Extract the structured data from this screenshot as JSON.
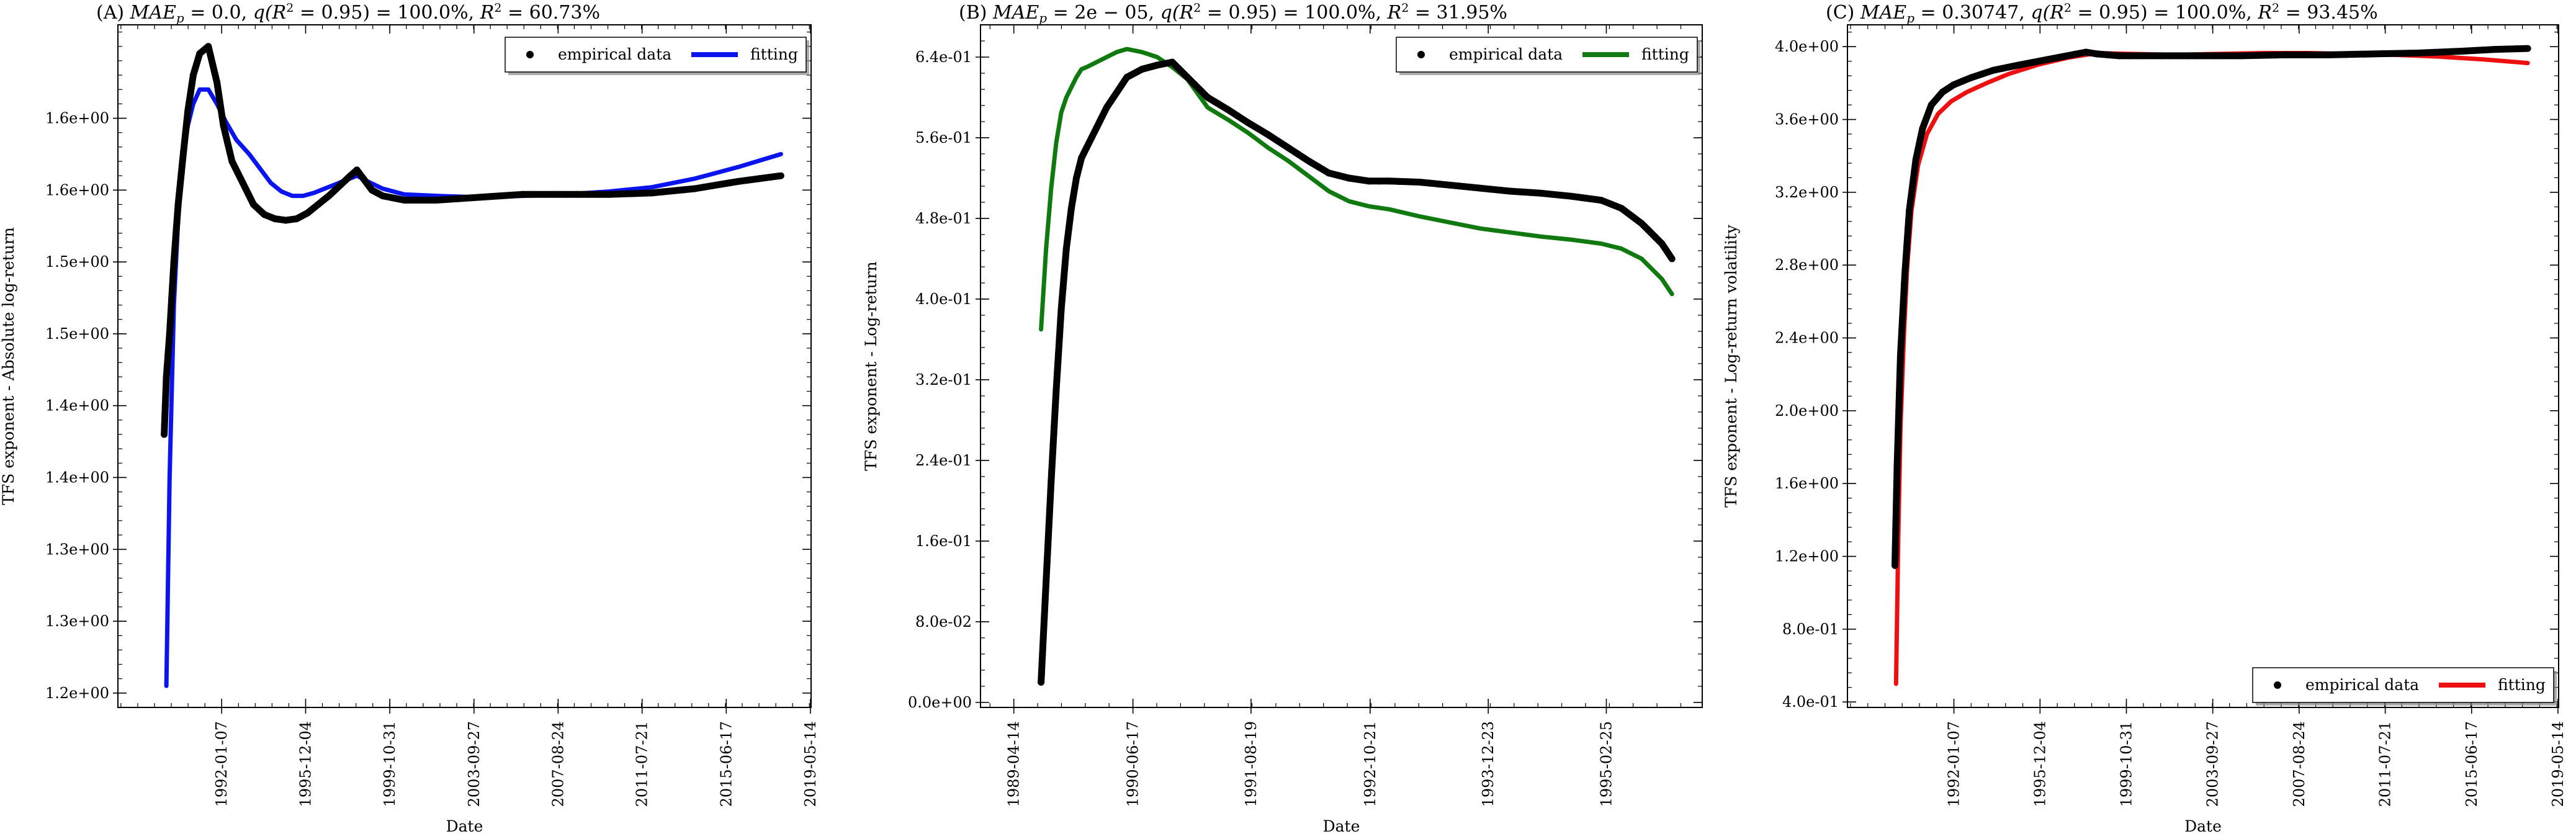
{
  "figure": {
    "panels": [
      "A",
      "B",
      "C"
    ]
  },
  "chart_data": [
    {
      "id": "A",
      "type": "line",
      "title": "(A) MAE_p = 0.0, q(R² = 0.95) = 100.0%, R² = 60.73%",
      "title_parts": {
        "prefix": "(A) ",
        "mae_sym": "MAE",
        "mae_sub": "p",
        "mae_val": " = 0.0, ",
        "q_text": "q(",
        "r2_sym": "R",
        "r2_sup": "2",
        "q_rest": " = 0.95) = 100.0%, ",
        "r2_val": " = 60.73%"
      },
      "xlabel": "Date",
      "ylabel": "TFS exponent - Absolute log-return",
      "x_range": [
        1987.2,
        2019.4
      ],
      "y_range": [
        1.19,
        1.665
      ],
      "x_ticks": [
        {
          "label": "1992-01-07",
          "value": 1992.02
        },
        {
          "label": "1995-12-04",
          "value": 1995.92
        },
        {
          "label": "1999-10-31",
          "value": 1999.83
        },
        {
          "label": "2003-09-27",
          "value": 2003.74
        },
        {
          "label": "2007-08-24",
          "value": 2007.65
        },
        {
          "label": "2011-07-21",
          "value": 2011.55
        },
        {
          "label": "2015-06-17",
          "value": 2015.46
        },
        {
          "label": "2019-05-14",
          "value": 2019.37
        }
      ],
      "y_ticks": [
        {
          "label": "1.2e+00",
          "value": 1.2
        },
        {
          "label": "1.3e+00",
          "value": 1.25
        },
        {
          "label": "1.3e+00",
          "value": 1.3
        },
        {
          "label": "1.4e+00",
          "value": 1.35
        },
        {
          "label": "1.4e+00",
          "value": 1.4
        },
        {
          "label": "1.5e+00",
          "value": 1.45
        },
        {
          "label": "1.5e+00",
          "value": 1.5
        },
        {
          "label": "1.6e+00",
          "value": 1.55
        },
        {
          "label": "1.6e+00",
          "value": 1.6
        }
      ],
      "legend": {
        "position": "top-right",
        "empirical_label": "empirical data",
        "fitting_label": "fitting"
      },
      "fit_color": "#0a14ee",
      "empirical_color": "#000000",
      "series": [
        {
          "name": "empirical data",
          "x": [
            1989.35,
            1989.45,
            1989.6,
            1989.8,
            1990.0,
            1990.2,
            1990.45,
            1990.7,
            1991.0,
            1991.4,
            1991.8,
            1992.1,
            1992.5,
            1993.0,
            1993.5,
            1994.0,
            1994.5,
            1995.0,
            1995.5,
            1996.0,
            1996.5,
            1997.0,
            1997.5,
            1998.0,
            1998.3,
            1998.6,
            1999.0,
            1999.5,
            2000.5,
            2002,
            2004,
            2006,
            2008,
            2010,
            2012,
            2014,
            2016,
            2018
          ],
          "y": [
            1.38,
            1.42,
            1.45,
            1.5,
            1.54,
            1.57,
            1.605,
            1.63,
            1.645,
            1.65,
            1.625,
            1.595,
            1.57,
            1.555,
            1.54,
            1.533,
            1.53,
            1.529,
            1.53,
            1.534,
            1.54,
            1.546,
            1.553,
            1.56,
            1.564,
            1.558,
            1.55,
            1.546,
            1.543,
            1.543,
            1.545,
            1.547,
            1.547,
            1.547,
            1.548,
            1.551,
            1.556,
            1.56
          ]
        },
        {
          "name": "fitting",
          "x": [
            1989.45,
            1989.6,
            1989.8,
            1990.0,
            1990.2,
            1990.45,
            1990.7,
            1991.0,
            1991.4,
            1991.8,
            1992.2,
            1992.7,
            1993.3,
            1993.8,
            1994.3,
            1994.8,
            1995.3,
            1995.8,
            1996.3,
            1996.8,
            1997.3,
            1997.8,
            1998.3,
            1998.8,
            1999.5,
            2000.5,
            2002,
            2004,
            2006,
            2008,
            2010,
            2012,
            2014,
            2016,
            2018
          ],
          "y": [
            1.205,
            1.35,
            1.47,
            1.53,
            1.57,
            1.595,
            1.61,
            1.62,
            1.62,
            1.61,
            1.598,
            1.585,
            1.575,
            1.565,
            1.555,
            1.549,
            1.546,
            1.546,
            1.548,
            1.551,
            1.554,
            1.557,
            1.56,
            1.556,
            1.551,
            1.547,
            1.546,
            1.545,
            1.546,
            1.547,
            1.549,
            1.552,
            1.558,
            1.566,
            1.575
          ]
        }
      ]
    },
    {
      "id": "B",
      "type": "line",
      "title": "(B) MAE_p = 2e−05, q(R² = 0.95) = 100.0%, R² = 31.95%",
      "title_parts": {
        "prefix": "(B) ",
        "mae_sym": "MAE",
        "mae_sub": "p",
        "mae_val": " = 2e − 05, ",
        "q_text": "q(",
        "r2_sym": "R",
        "r2_sup": "2",
        "q_rest": " = 0.95) = 100.0%, ",
        "r2_val": " = 31.95%"
      },
      "xlabel": "Date",
      "ylabel": "TFS exponent - Log-return",
      "x_range": [
        1988.95,
        1996.1
      ],
      "y_range": [
        -0.005,
        0.672
      ],
      "x_ticks": [
        {
          "label": "1989-04-14",
          "value": 1989.28
        },
        {
          "label": "1990-06-17",
          "value": 1990.46
        },
        {
          "label": "1991-08-19",
          "value": 1991.63
        },
        {
          "label": "1992-10-21",
          "value": 1992.81
        },
        {
          "label": "1993-12-23",
          "value": 1993.98
        },
        {
          "label": "1995-02-25",
          "value": 1995.15
        }
      ],
      "y_ticks": [
        {
          "label": "0.0e+00",
          "value": 0.0
        },
        {
          "label": "8.0e-02",
          "value": 0.08
        },
        {
          "label": "1.6e-01",
          "value": 0.16
        },
        {
          "label": "2.4e-01",
          "value": 0.24
        },
        {
          "label": "3.2e-01",
          "value": 0.32
        },
        {
          "label": "4.0e-01",
          "value": 0.4
        },
        {
          "label": "4.8e-01",
          "value": 0.48
        },
        {
          "label": "5.6e-01",
          "value": 0.56
        },
        {
          "label": "6.4e-01",
          "value": 0.64
        }
      ],
      "legend": {
        "position": "top-right",
        "empirical_label": "empirical data",
        "fitting_label": "fitting"
      },
      "fit_color": "#107a10",
      "empirical_color": "#000000",
      "series": [
        {
          "name": "empirical data",
          "x": [
            1989.55,
            1989.6,
            1989.65,
            1989.7,
            1989.75,
            1989.8,
            1989.85,
            1989.9,
            1989.95,
            1990.0,
            1990.1,
            1990.2,
            1990.3,
            1990.4,
            1990.55,
            1990.7,
            1990.85,
            1991.0,
            1991.2,
            1991.4,
            1991.6,
            1991.8,
            1992.0,
            1992.2,
            1992.4,
            1992.6,
            1992.8,
            1993.0,
            1993.3,
            1993.6,
            1993.9,
            1994.2,
            1994.5,
            1994.8,
            1995.1,
            1995.3,
            1995.5,
            1995.7,
            1995.8
          ],
          "y": [
            0.02,
            0.12,
            0.22,
            0.31,
            0.39,
            0.45,
            0.49,
            0.52,
            0.54,
            0.55,
            0.57,
            0.59,
            0.605,
            0.62,
            0.628,
            0.632,
            0.635,
            0.62,
            0.6,
            0.588,
            0.575,
            0.563,
            0.55,
            0.537,
            0.525,
            0.52,
            0.517,
            0.517,
            0.516,
            0.513,
            0.51,
            0.507,
            0.505,
            0.502,
            0.498,
            0.49,
            0.475,
            0.455,
            0.44
          ]
        },
        {
          "name": "fitting",
          "x": [
            1989.55,
            1989.6,
            1989.65,
            1989.7,
            1989.75,
            1989.8,
            1989.85,
            1989.9,
            1989.95,
            1990.0,
            1990.1,
            1990.2,
            1990.3,
            1990.4,
            1990.55,
            1990.7,
            1990.85,
            1991.0,
            1991.2,
            1991.4,
            1991.6,
            1991.8,
            1992.0,
            1992.2,
            1992.4,
            1992.6,
            1992.8,
            1993.0,
            1993.3,
            1993.6,
            1993.9,
            1994.2,
            1994.5,
            1994.8,
            1995.1,
            1995.3,
            1995.5,
            1995.7,
            1995.8
          ],
          "y": [
            0.37,
            0.45,
            0.51,
            0.555,
            0.585,
            0.6,
            0.61,
            0.62,
            0.628,
            0.63,
            0.635,
            0.64,
            0.645,
            0.648,
            0.645,
            0.64,
            0.63,
            0.618,
            0.59,
            0.578,
            0.565,
            0.55,
            0.537,
            0.522,
            0.507,
            0.497,
            0.492,
            0.489,
            0.482,
            0.476,
            0.47,
            0.466,
            0.462,
            0.459,
            0.455,
            0.45,
            0.44,
            0.42,
            0.405
          ]
        }
      ]
    },
    {
      "id": "C",
      "type": "line",
      "title": "(C) MAE_p = 0.30747, q(R² = 0.95) = 100.0%, R² = 93.45%",
      "title_parts": {
        "prefix": "(C) ",
        "mae_sym": "MAE",
        "mae_sub": "p",
        "mae_val": " = 0.30747, ",
        "q_text": "q(",
        "r2_sym": "R",
        "r2_sup": "2",
        "q_rest": " = 0.95) = 100.0%, ",
        "r2_val": " = 93.45%"
      },
      "xlabel": "Date",
      "ylabel": "TFS exponent - Log-return volatility",
      "x_range": [
        1987.2,
        2019.4
      ],
      "y_range": [
        0.37,
        4.12
      ],
      "x_ticks": [
        {
          "label": "1992-01-07",
          "value": 1992.02
        },
        {
          "label": "1995-12-04",
          "value": 1995.92
        },
        {
          "label": "1999-10-31",
          "value": 1999.83
        },
        {
          "label": "2003-09-27",
          "value": 2003.74
        },
        {
          "label": "2007-08-24",
          "value": 2007.65
        },
        {
          "label": "2011-07-21",
          "value": 2011.55
        },
        {
          "label": "2015-06-17",
          "value": 2015.46
        },
        {
          "label": "2019-05-14",
          "value": 2019.37
        }
      ],
      "y_ticks": [
        {
          "label": "4.0e-01",
          "value": 0.4
        },
        {
          "label": "8.0e-01",
          "value": 0.8
        },
        {
          "label": "1.2e+00",
          "value": 1.2
        },
        {
          "label": "1.6e+00",
          "value": 1.6
        },
        {
          "label": "2.0e+00",
          "value": 2.0
        },
        {
          "label": "2.4e+00",
          "value": 2.4
        },
        {
          "label": "2.8e+00",
          "value": 2.8
        },
        {
          "label": "3.2e+00",
          "value": 3.2
        },
        {
          "label": "3.6e+00",
          "value": 3.6
        },
        {
          "label": "4.0e+00",
          "value": 4.0
        }
      ],
      "legend": {
        "position": "bottom-right",
        "empirical_label": "empirical data",
        "fitting_label": "fitting"
      },
      "fit_color": "#ee1010",
      "empirical_color": "#000000",
      "series": [
        {
          "name": "empirical data",
          "x": [
            1989.35,
            1989.45,
            1989.6,
            1989.8,
            1990.0,
            1990.3,
            1990.6,
            1991.0,
            1991.5,
            1992.0,
            1992.8,
            1993.8,
            1995.0,
            1996.5,
            1998.0,
            1998.5,
            1999.5,
            2001,
            2003,
            2005,
            2007,
            2009,
            2011,
            2013,
            2015,
            2016.5,
            2018
          ],
          "y": [
            1.15,
            1.7,
            2.3,
            2.75,
            3.1,
            3.38,
            3.55,
            3.68,
            3.75,
            3.79,
            3.83,
            3.87,
            3.9,
            3.935,
            3.97,
            3.96,
            3.95,
            3.95,
            3.95,
            3.95,
            3.955,
            3.955,
            3.96,
            3.965,
            3.975,
            3.985,
            3.99
          ]
        },
        {
          "name": "fitting",
          "x": [
            1989.4,
            1989.5,
            1989.6,
            1989.75,
            1989.9,
            1990.1,
            1990.4,
            1990.8,
            1991.3,
            1991.9,
            1992.6,
            1993.5,
            1994.5,
            1995.8,
            1997.2,
            1998.5,
            2000,
            2002,
            2004,
            2006,
            2008,
            2010,
            2012,
            2014,
            2016,
            2018
          ],
          "y": [
            0.5,
            1.3,
            1.9,
            2.4,
            2.78,
            3.1,
            3.35,
            3.52,
            3.63,
            3.7,
            3.75,
            3.8,
            3.85,
            3.9,
            3.94,
            3.965,
            3.96,
            3.955,
            3.96,
            3.965,
            3.965,
            3.96,
            3.955,
            3.945,
            3.93,
            3.91
          ]
        }
      ]
    }
  ]
}
